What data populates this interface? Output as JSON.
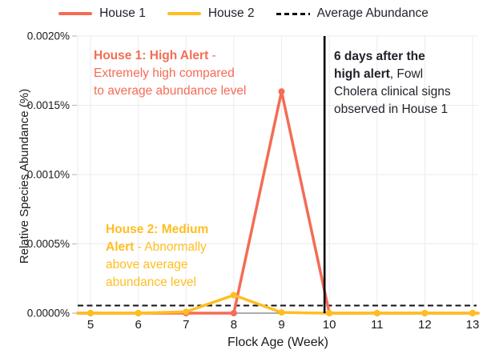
{
  "legend": {
    "items": [
      {
        "label": "House 1",
        "color": "#F46C55",
        "style": "solid"
      },
      {
        "label": "House 2",
        "color": "#FFBE20",
        "style": "solid"
      },
      {
        "label": "Average Abundance",
        "color": "#111111",
        "style": "dashed"
      }
    ]
  },
  "annotations": {
    "house1": {
      "color": "#F46C55",
      "lines": [
        {
          "bold": "House 1: High Alert",
          "text": " -"
        },
        {
          "text": "Extremely high compared"
        },
        {
          "text": "to average abundance level"
        }
      ]
    },
    "house2": {
      "color": "#FFBE20",
      "lines": [
        {
          "bold": "House 2: Medium"
        },
        {
          "bold": "Alert",
          "text": " - Abnormally"
        },
        {
          "text": "above average"
        },
        {
          "text": "abundance level"
        }
      ]
    },
    "event": {
      "color": "#1f2028",
      "lines": [
        {
          "bold": "6 days after the"
        },
        {
          "bold": "high alert",
          "text": ", Fowl"
        },
        {
          "text": "Cholera clinical signs"
        },
        {
          "text": "observed in House 1"
        }
      ]
    }
  },
  "chart_data": {
    "type": "line",
    "title": "",
    "xlabel": "Flock Age (Week)",
    "ylabel": "Relative Species Abundance (%)",
    "x": [
      5,
      6,
      7,
      8,
      9,
      10,
      11,
      12,
      13
    ],
    "series": [
      {
        "name": "House 1",
        "color": "#F46C55",
        "values": [
          0,
          0,
          0,
          0,
          0.0016,
          0,
          0,
          0,
          0
        ]
      },
      {
        "name": "House 2",
        "color": "#FFBE20",
        "values": [
          0,
          0,
          1e-05,
          0.00013,
          5e-06,
          0,
          0,
          0,
          0
        ]
      }
    ],
    "average_abundance": 5.5e-05,
    "event_line_week": 9.9,
    "xlim": [
      5,
      13
    ],
    "ylim": [
      0,
      0.002
    ],
    "xticks": [
      5,
      6,
      7,
      8,
      9,
      10,
      11,
      12,
      13
    ],
    "yticks": [
      {
        "value": 0.0,
        "label": "0.0000%"
      },
      {
        "value": 0.0005,
        "label": "0.0005%"
      },
      {
        "value": 0.001,
        "label": "0.0010%"
      },
      {
        "value": 0.0015,
        "label": "0.0015%"
      },
      {
        "value": 0.002,
        "label": "0.0020%"
      }
    ],
    "grid": true,
    "legend_position": "top"
  }
}
